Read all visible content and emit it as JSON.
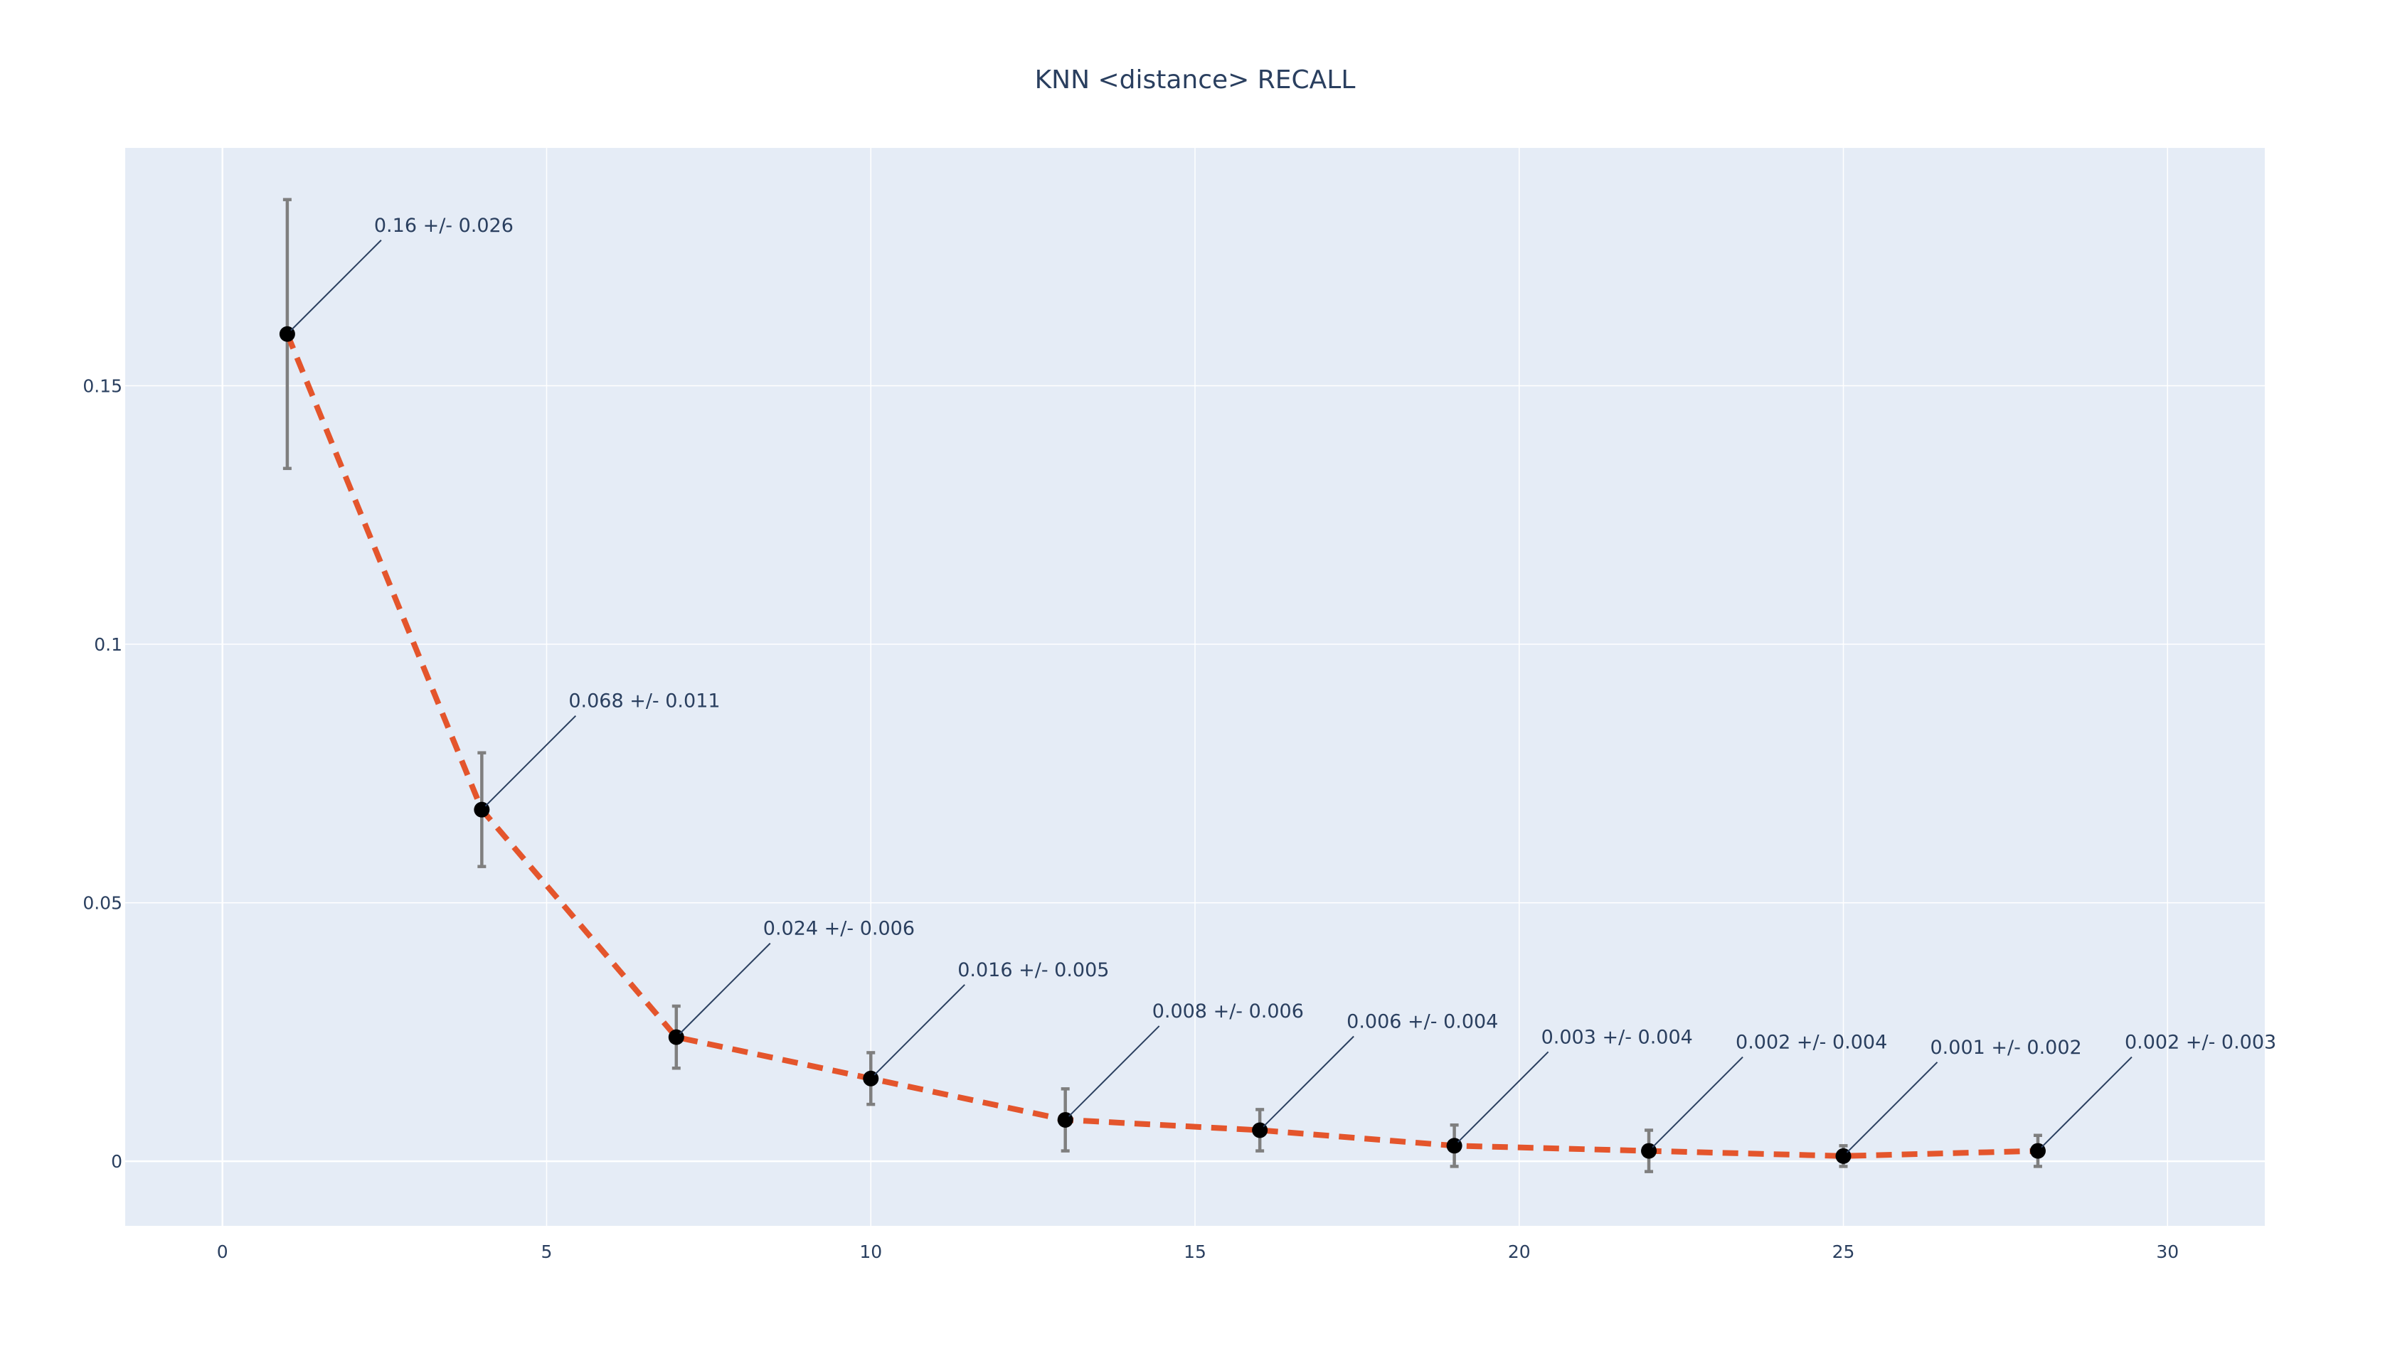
{
  "chart_data": {
    "type": "line",
    "title": "KNN <distance> RECALL",
    "xlabel": "",
    "ylabel": "",
    "xlim": [
      -1.5,
      31.5
    ],
    "ylim": [
      -0.0125,
      0.196
    ],
    "x_ticks": [
      0,
      5,
      10,
      15,
      20,
      25,
      30
    ],
    "x_tick_labels": [
      "0",
      "5",
      "10",
      "15",
      "20",
      "25",
      "30"
    ],
    "y_ticks": [
      0,
      0.05,
      0.1,
      0.15
    ],
    "y_tick_labels": [
      "0",
      "0.05",
      "0.1",
      "0.15"
    ],
    "grid": true,
    "legend": "none",
    "colors": {
      "plot_background": "#e5ecf6",
      "grid": "#ffffff",
      "line": "#e4552c",
      "marker": "#000000",
      "error_bar": "#7f7f7f",
      "text": "#2a3f5f",
      "annotation_arrow": "#2a3f5f"
    },
    "series": [
      {
        "x": [
          1,
          4,
          7,
          10,
          13,
          16,
          19,
          22,
          25,
          28
        ],
        "y": [
          0.16,
          0.068,
          0.024,
          0.016,
          0.008,
          0.006,
          0.003,
          0.002,
          0.001,
          0.002
        ],
        "error": [
          0.026,
          0.011,
          0.006,
          0.005,
          0.006,
          0.004,
          0.004,
          0.004,
          0.002,
          0.003
        ],
        "line_style": "dashed"
      }
    ],
    "annotations": [
      "0.16 +/- 0.026",
      "0.068 +/- 0.011",
      "0.024 +/- 0.006",
      "0.016 +/- 0.005",
      "0.008 +/- 0.006",
      "0.006 +/- 0.004",
      "0.003 +/- 0.004",
      "0.002 +/- 0.004",
      "0.001 +/- 0.002",
      "0.002 +/- 0.003"
    ]
  }
}
